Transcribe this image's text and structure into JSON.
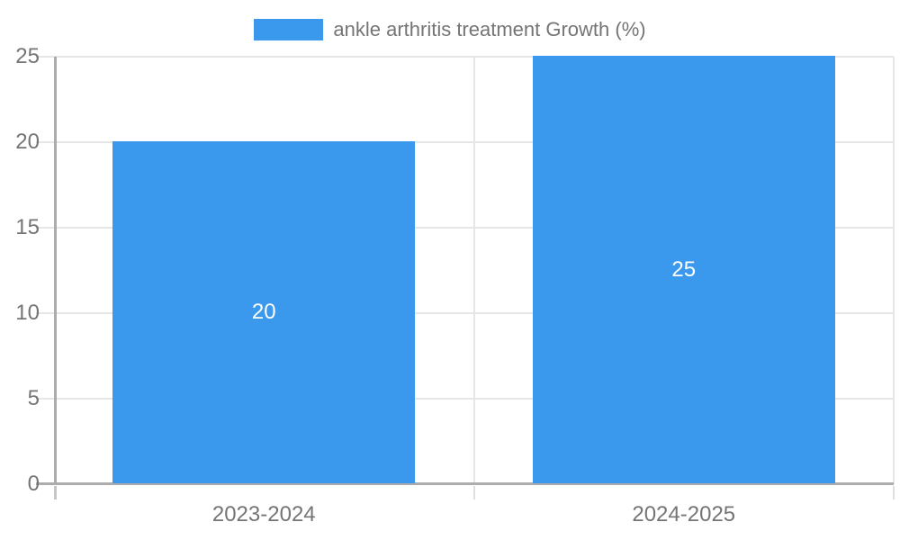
{
  "legend": {
    "label": "ankle arthritis treatment Growth (%)"
  },
  "chart_data": {
    "type": "bar",
    "title": "",
    "categories": [
      "2023-2024",
      "2024-2025"
    ],
    "series": [
      {
        "name": "ankle arthritis treatment Growth (%)",
        "values": [
          20,
          25
        ]
      }
    ],
    "data_labels": [
      "20",
      "25"
    ],
    "xlabel": "",
    "ylabel": "",
    "ylim": [
      0,
      25
    ],
    "yticks": [
      0,
      5,
      10,
      15,
      20,
      25
    ],
    "grid": true,
    "legend_position": "top-center"
  },
  "colors": {
    "bar": "#3a99ec",
    "gridline": "#e6e6e6",
    "axis": "#acacac",
    "tick_label": "#757575",
    "legend_text": "#757575",
    "value_label": "#ffffff",
    "background": "#ffffff"
  }
}
